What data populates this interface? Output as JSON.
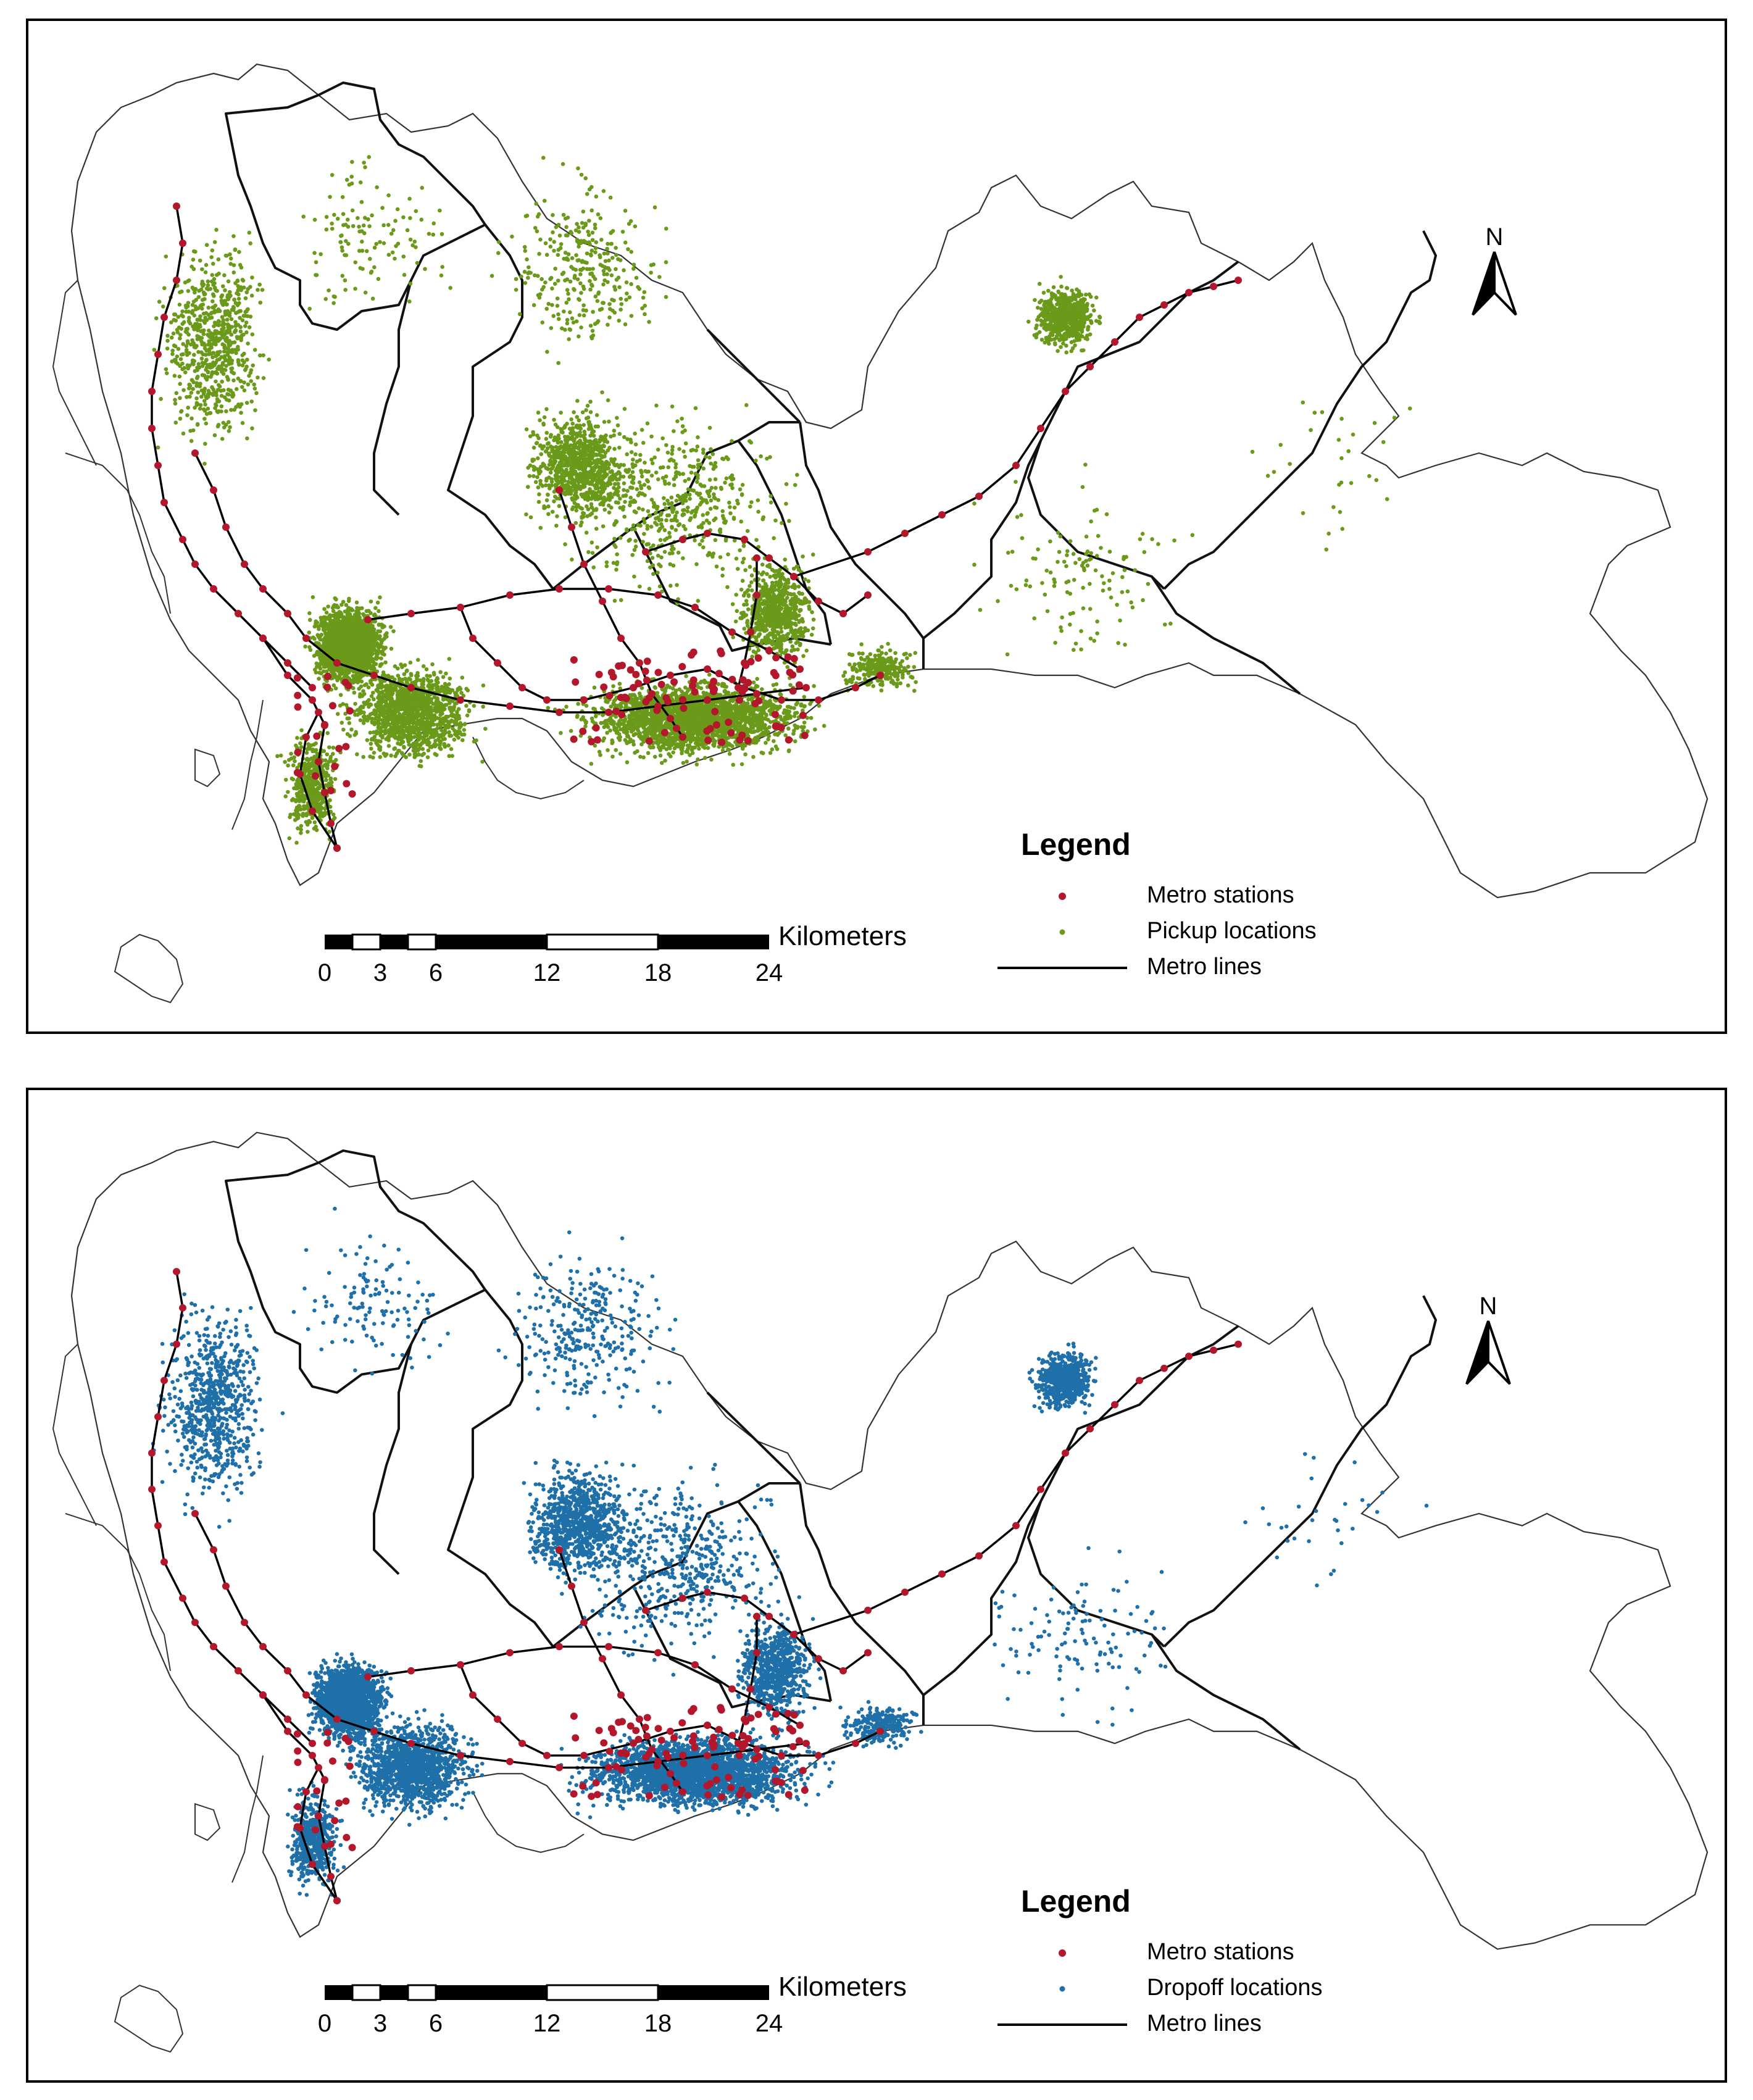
{
  "panels": [
    {
      "id": "pickup",
      "point_label": "Pickup locations",
      "point_color": "#6b9a1a",
      "point_density": "high",
      "hotspots": [
        "western coast",
        "Nanshan centre",
        "Futian/Luohu core",
        "Longhua north",
        "Longgang east"
      ]
    },
    {
      "id": "dropoff",
      "point_label": "Dropoff locations",
      "point_color": "#1f6fa8",
      "point_density": "high",
      "hotspots": [
        "western coast",
        "Nanshan centre",
        "Futian/Luohu core",
        "Longhua north",
        "Longgang east"
      ]
    }
  ],
  "legend": {
    "title": "Legend",
    "stations_label": "Metro stations",
    "lines_label": "Metro lines",
    "station_color": "#b3172b",
    "line_color": "#000000"
  },
  "scale_bar": {
    "unit": "Kilometers",
    "ticks": [
      "0",
      "3",
      "6",
      "12",
      "18",
      "24"
    ]
  },
  "north_arrow": {
    "letter": "N"
  }
}
